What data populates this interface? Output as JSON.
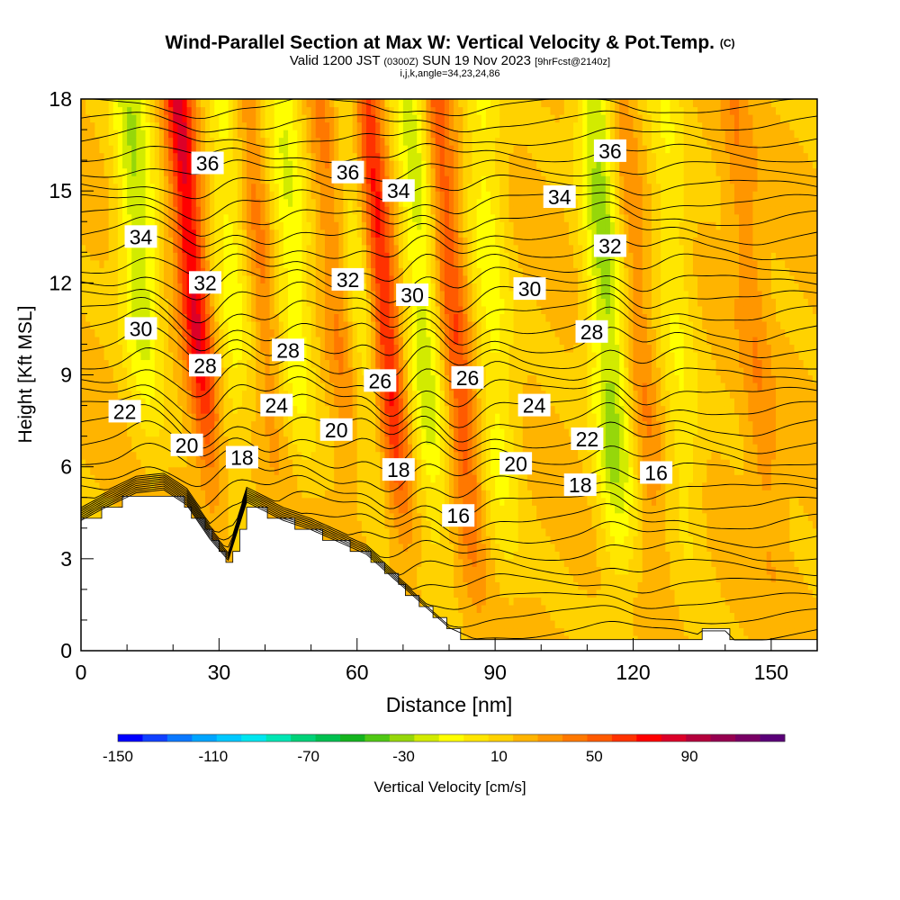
{
  "header": {
    "title": "Wind-Parallel Section at Max W: Vertical Velocity & Pot.Temp.",
    "copyright": "(C)",
    "valid_prefix": "Valid 1200 JST",
    "valid_zulu": "(0300Z)",
    "valid_date": "SUN 19 Nov 2023",
    "forecast": "[9hrFcst@2140z]",
    "indices": "i,j,k,angle=34,23,24,86"
  },
  "chart_data": {
    "type": "heatmap",
    "xlabel": "Distance [nm]",
    "ylabel": "Height [Kft MSL]",
    "xlim": [
      0,
      160
    ],
    "ylim": [
      0,
      18
    ],
    "x_ticks": [
      0,
      30,
      60,
      90,
      120,
      150
    ],
    "y_ticks": [
      0,
      3,
      6,
      9,
      12,
      15,
      18
    ],
    "colorbar": {
      "label": "Vertical Velocity [cm/s]",
      "range": [
        -150,
        130
      ],
      "step": 10,
      "tick_labels": [
        -150,
        -110,
        -70,
        -30,
        10,
        50,
        90
      ],
      "colors": [
        "#0000ff",
        "#1040ff",
        "#0a78ff",
        "#00a5ff",
        "#00c8ff",
        "#00e6f0",
        "#00e6b4",
        "#00d278",
        "#00c050",
        "#14b41e",
        "#50c814",
        "#96d70a",
        "#d2eb00",
        "#ffff00",
        "#ffe600",
        "#ffd200",
        "#ffb400",
        "#ff9600",
        "#ff7800",
        "#ff5a00",
        "#ff3200",
        "#ff0000",
        "#dc0028",
        "#b4003c",
        "#960050",
        "#780064",
        "#5a0078"
      ]
    },
    "terrain_kft": [
      [
        0,
        4.2
      ],
      [
        5,
        4.6
      ],
      [
        12,
        5.1
      ],
      [
        18,
        5.2
      ],
      [
        23,
        4.7
      ],
      [
        28,
        3.6
      ],
      [
        32,
        2.9
      ],
      [
        36,
        4.8
      ],
      [
        44,
        4.2
      ],
      [
        50,
        3.9
      ],
      [
        56,
        3.5
      ],
      [
        62,
        3.1
      ],
      [
        68,
        2.3
      ],
      [
        74,
        1.5
      ],
      [
        80,
        0.7
      ],
      [
        86,
        0.3
      ],
      [
        90,
        0.3
      ],
      [
        100,
        0.3
      ],
      [
        110,
        0.3
      ],
      [
        125,
        0.3
      ],
      [
        133,
        0.3
      ],
      [
        135,
        0.6
      ],
      [
        140,
        0.6
      ],
      [
        142,
        0.3
      ],
      [
        158,
        0.3
      ]
    ],
    "updraft_columns": [
      {
        "x": 26,
        "w": 60
      },
      {
        "x": 41,
        "w": 22
      },
      {
        "x": 57,
        "w": 20
      },
      {
        "x": 67,
        "w": 55
      },
      {
        "x": 82,
        "w": 38
      },
      {
        "x": 122,
        "w": 18
      },
      {
        "x": 147,
        "w": 15
      }
    ],
    "downdraft_columns": [
      {
        "x": 14,
        "w": -40
      },
      {
        "x": 34,
        "w": -25
      },
      {
        "x": 47,
        "w": -30
      },
      {
        "x": 62,
        "w": -22
      },
      {
        "x": 75,
        "w": -35
      },
      {
        "x": 90,
        "w": -25
      },
      {
        "x": 115,
        "w": -45
      },
      {
        "x": 130,
        "w": -20
      }
    ],
    "isentropes": {
      "interval_K": 1,
      "labels": [
        {
          "value": "36",
          "x": 27.5,
          "y": 15.9
        },
        {
          "value": "36",
          "x": 58,
          "y": 15.6
        },
        {
          "value": "36",
          "x": 115,
          "y": 16.3
        },
        {
          "value": "34",
          "x": 13,
          "y": 13.5
        },
        {
          "value": "34",
          "x": 69,
          "y": 15.0
        },
        {
          "value": "34",
          "x": 104,
          "y": 14.8
        },
        {
          "value": "32",
          "x": 27,
          "y": 12.0
        },
        {
          "value": "32",
          "x": 58,
          "y": 12.1
        },
        {
          "value": "32",
          "x": 115,
          "y": 13.2
        },
        {
          "value": "30",
          "x": 13,
          "y": 10.5
        },
        {
          "value": "30",
          "x": 72,
          "y": 11.6
        },
        {
          "value": "30",
          "x": 97.5,
          "y": 11.8
        },
        {
          "value": "28",
          "x": 27,
          "y": 9.3
        },
        {
          "value": "28",
          "x": 45,
          "y": 9.8
        },
        {
          "value": "28",
          "x": 111,
          "y": 10.4
        },
        {
          "value": "26",
          "x": 65,
          "y": 8.8
        },
        {
          "value": "26",
          "x": 84,
          "y": 8.9
        },
        {
          "value": "24",
          "x": 42.5,
          "y": 8.0
        },
        {
          "value": "24",
          "x": 98.5,
          "y": 8.0
        },
        {
          "value": "22",
          "x": 9.5,
          "y": 7.8
        },
        {
          "value": "22",
          "x": 110,
          "y": 6.9
        },
        {
          "value": "20",
          "x": 23,
          "y": 6.7
        },
        {
          "value": "20",
          "x": 55.5,
          "y": 7.2
        },
        {
          "value": "20",
          "x": 94.5,
          "y": 6.1
        },
        {
          "value": "18",
          "x": 35,
          "y": 6.3
        },
        {
          "value": "18",
          "x": 69,
          "y": 5.9
        },
        {
          "value": "18",
          "x": 108.5,
          "y": 5.4
        },
        {
          "value": "16",
          "x": 82,
          "y": 4.4
        },
        {
          "value": "16",
          "x": 125,
          "y": 5.8
        }
      ]
    }
  }
}
